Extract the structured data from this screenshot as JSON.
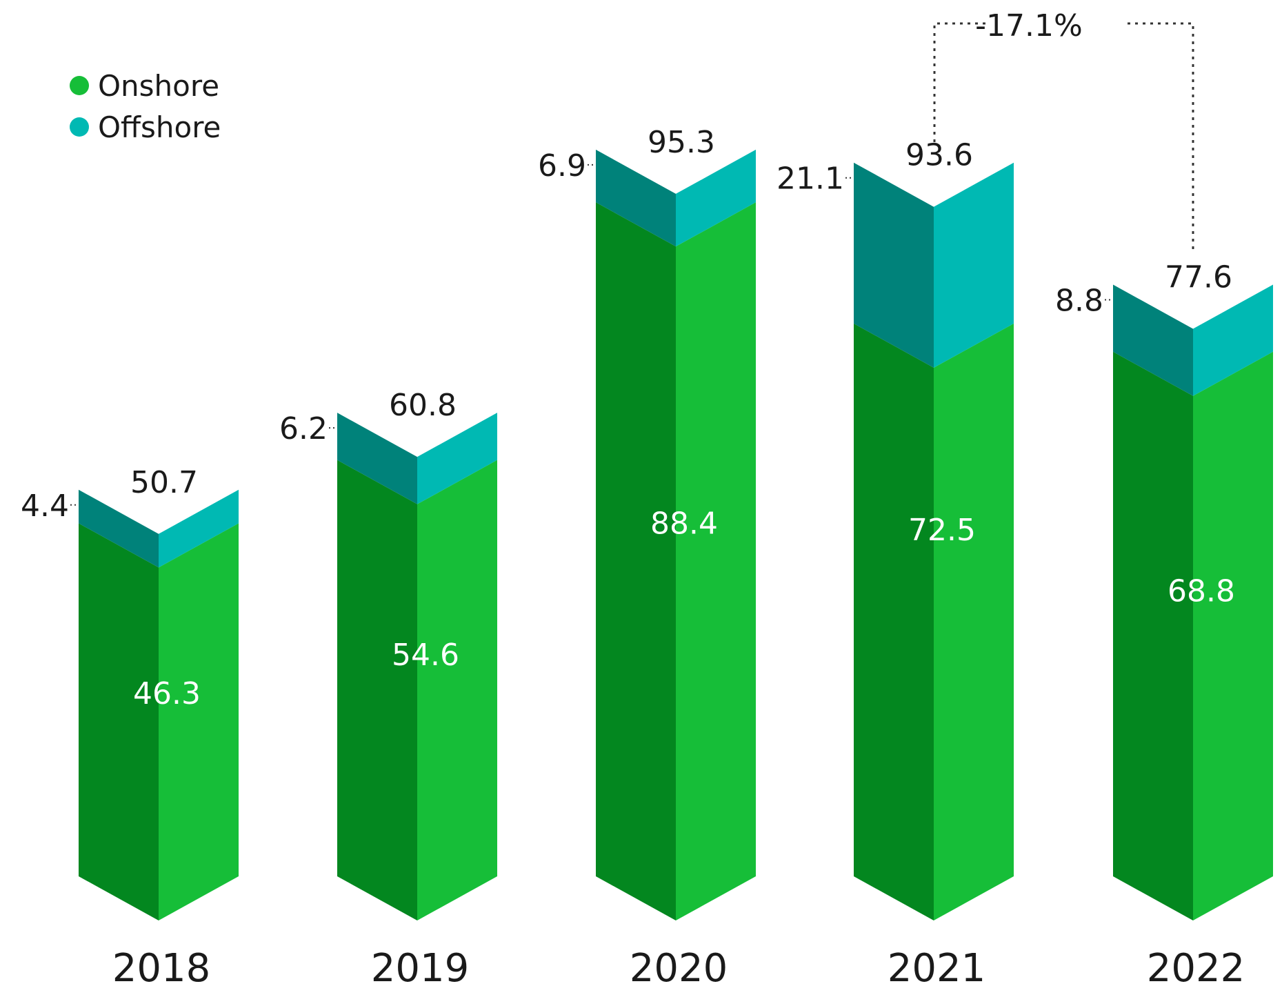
{
  "chart_data": {
    "type": "bar",
    "stacked": true,
    "categories": [
      "2018",
      "2019",
      "2020",
      "2021",
      "2022"
    ],
    "series": [
      {
        "name": "Onshore",
        "values": [
          46.3,
          54.6,
          88.4,
          72.5,
          68.8
        ]
      },
      {
        "name": "Offshore",
        "values": [
          4.4,
          6.2,
          6.9,
          21.1,
          8.8
        ]
      }
    ],
    "totals": [
      50.7,
      60.8,
      95.3,
      93.6,
      77.6
    ],
    "total_labels": [
      "50.7",
      "60.8",
      "95.3",
      "93.6",
      "77.6"
    ],
    "onshore_labels": [
      "46.3",
      "54.6",
      "88.4",
      "72.5",
      "68.8"
    ],
    "offshore_labels": [
      "4.4",
      "6.2",
      "6.9",
      "21.1",
      "8.8"
    ],
    "annotation": {
      "text": "-17.1%",
      "from": "2021",
      "to": "2022"
    },
    "legend": {
      "position": "top-left",
      "items": [
        {
          "label": "Onshore",
          "color": "#16be38"
        },
        {
          "label": "Offshore",
          "color": "#00b9b3"
        }
      ]
    },
    "colors": {
      "onshore_light": "#16be38",
      "onshore_dark": "#03871f",
      "offshore_light": "#00b9b3",
      "offshore_dark": "#00827a"
    }
  }
}
